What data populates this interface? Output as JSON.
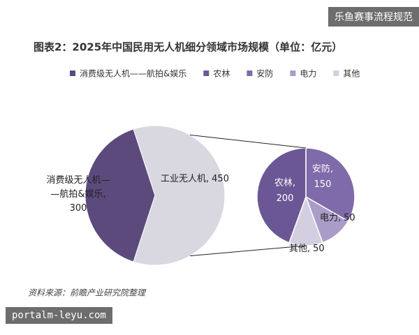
{
  "chart_data": {
    "type": "pie_of_pie",
    "title": "图表2：2025年中国民用无人机细分领域市场规模（单位：亿元）",
    "label_separator": ",",
    "main": {
      "categories": [
        "消费级无人机——航拍&娱乐",
        "工业无人机"
      ],
      "values": [
        300,
        450
      ],
      "colors": [
        "#5c4a7d",
        "#d9d7e0"
      ]
    },
    "sub": {
      "categories": [
        "安防",
        "电力",
        "其他",
        "农林"
      ],
      "values": [
        150,
        50,
        50,
        200
      ],
      "colors": [
        "#7f6aaa",
        "#a99dc8",
        "#d4cfe0",
        "#6b5795"
      ]
    },
    "source": "资料来源：前瞻产业研究院整理"
  },
  "overlays": {
    "top_right": "乐鱼赛事流程规范",
    "bottom_left": "portalm-leyu.com"
  }
}
